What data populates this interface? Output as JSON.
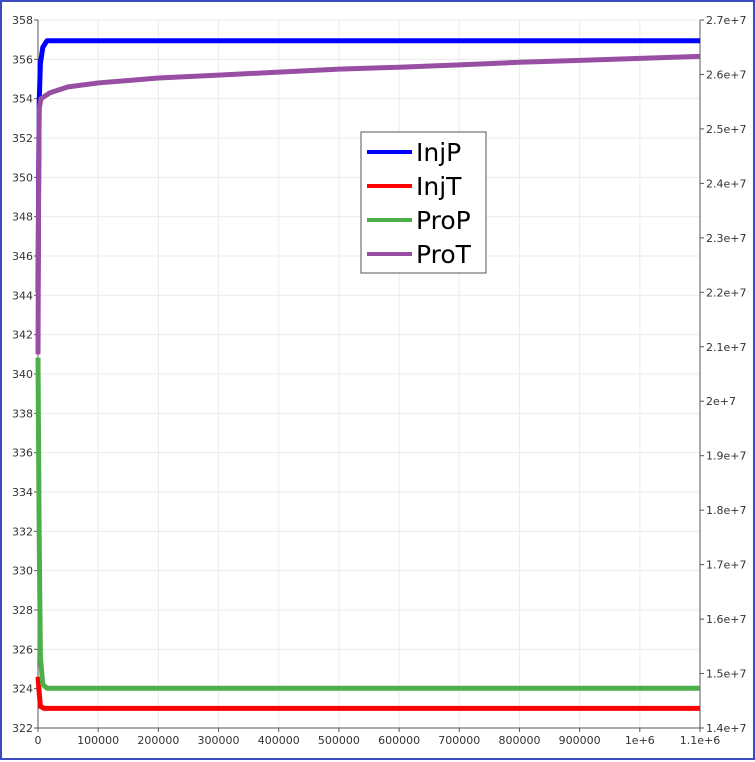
{
  "chart_data": {
    "type": "line",
    "title": "",
    "xlabel": "",
    "ylabel_left": "",
    "ylabel_right": "",
    "grid": true,
    "legend_position": "top-center",
    "x_range": [
      0,
      1100000
    ],
    "y_left_range": [
      322,
      358
    ],
    "y_right_range": [
      14000000,
      27000000
    ],
    "x_ticks": [
      {
        "value": 0,
        "label": "0"
      },
      {
        "value": 100000,
        "label": "100000"
      },
      {
        "value": 200000,
        "label": "200000"
      },
      {
        "value": 300000,
        "label": "300000"
      },
      {
        "value": 400000,
        "label": "400000"
      },
      {
        "value": 500000,
        "label": "500000"
      },
      {
        "value": 600000,
        "label": "600000"
      },
      {
        "value": 700000,
        "label": "700000"
      },
      {
        "value": 800000,
        "label": "800000"
      },
      {
        "value": 900000,
        "label": "900000"
      },
      {
        "value": 1000000,
        "label": "1e+6"
      },
      {
        "value": 1100000,
        "label": "1.1e+6"
      }
    ],
    "y_left_ticks": [
      {
        "value": 322,
        "label": "322"
      },
      {
        "value": 324,
        "label": "324"
      },
      {
        "value": 326,
        "label": "326"
      },
      {
        "value": 328,
        "label": "328"
      },
      {
        "value": 330,
        "label": "330"
      },
      {
        "value": 332,
        "label": "332"
      },
      {
        "value": 334,
        "label": "334"
      },
      {
        "value": 336,
        "label": "336"
      },
      {
        "value": 338,
        "label": "338"
      },
      {
        "value": 340,
        "label": "340"
      },
      {
        "value": 342,
        "label": "342"
      },
      {
        "value": 344,
        "label": "344"
      },
      {
        "value": 346,
        "label": "346"
      },
      {
        "value": 348,
        "label": "348"
      },
      {
        "value": 350,
        "label": "350"
      },
      {
        "value": 352,
        "label": "352"
      },
      {
        "value": 354,
        "label": "354"
      },
      {
        "value": 356,
        "label": "356"
      },
      {
        "value": 358,
        "label": "358"
      }
    ],
    "y_right_ticks": [
      {
        "value": 14000000,
        "label": "1.4e+7"
      },
      {
        "value": 15000000,
        "label": "1.5e+7"
      },
      {
        "value": 16000000,
        "label": "1.6e+7"
      },
      {
        "value": 17000000,
        "label": "1.7e+7"
      },
      {
        "value": 18000000,
        "label": "1.8e+7"
      },
      {
        "value": 19000000,
        "label": "1.9e+7"
      },
      {
        "value": 20000000,
        "label": "2e+7"
      },
      {
        "value": 21000000,
        "label": "2.1e+7"
      },
      {
        "value": 22000000,
        "label": "2.2e+7"
      },
      {
        "value": 23000000,
        "label": "2.3e+7"
      },
      {
        "value": 24000000,
        "label": "2.4e+7"
      },
      {
        "value": 25000000,
        "label": "2.5e+7"
      },
      {
        "value": 26000000,
        "label": "2.6e+7"
      },
      {
        "value": 27000000,
        "label": "2.7e+7"
      }
    ],
    "series": [
      {
        "name": "InjP",
        "color": "#0000ff",
        "axis": "right",
        "points": [
          [
            0,
            22000000
          ],
          [
            1000,
            24000000
          ],
          [
            2000,
            25500000
          ],
          [
            4000,
            26200000
          ],
          [
            8000,
            26500000
          ],
          [
            15000,
            26620000
          ],
          [
            1100000,
            26620000
          ]
        ]
      },
      {
        "name": "InjT",
        "color": "#ff0000",
        "axis": "left",
        "points": [
          [
            0,
            324.6
          ],
          [
            2000,
            323.8
          ],
          [
            4000,
            323.1
          ],
          [
            10000,
            323.0
          ],
          [
            1100000,
            323.0
          ]
        ]
      },
      {
        "name": "ProP",
        "color": "#4daf4a",
        "axis": "right",
        "points": [
          [
            0,
            20800000
          ],
          [
            2000,
            17500000
          ],
          [
            4000,
            15300000
          ],
          [
            8000,
            14800000
          ],
          [
            15000,
            14730000
          ],
          [
            1100000,
            14730000
          ]
        ]
      },
      {
        "name": "ProT",
        "color": "#984ea3",
        "axis": "left",
        "points": [
          [
            0,
            341
          ],
          [
            1000,
            349
          ],
          [
            2000,
            353.5
          ],
          [
            5000,
            354.0
          ],
          [
            20000,
            354.3
          ],
          [
            50000,
            354.6
          ],
          [
            100000,
            354.8
          ],
          [
            200000,
            355.05
          ],
          [
            300000,
            355.2
          ],
          [
            400000,
            355.35
          ],
          [
            500000,
            355.5
          ],
          [
            600000,
            355.6
          ],
          [
            700000,
            355.72
          ],
          [
            800000,
            355.85
          ],
          [
            900000,
            355.95
          ],
          [
            1000000,
            356.05
          ],
          [
            1100000,
            356.15
          ]
        ]
      }
    ]
  }
}
